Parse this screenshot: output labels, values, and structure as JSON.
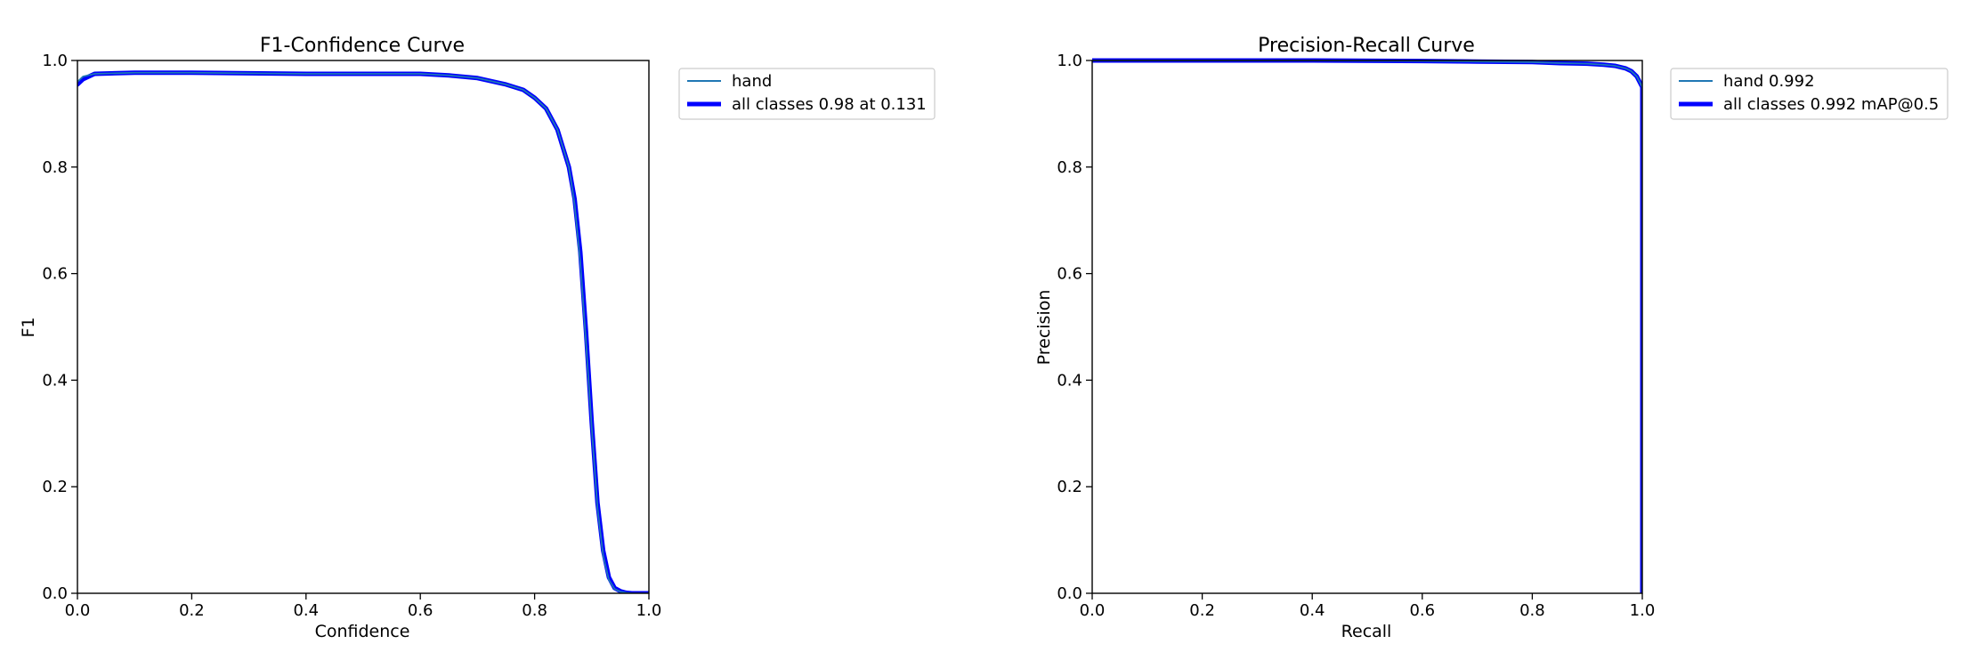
{
  "chart_data": [
    {
      "type": "line",
      "title": "F1-Confidence Curve",
      "xlabel": "Confidence",
      "ylabel": "F1",
      "xlim": [
        0.0,
        1.0
      ],
      "ylim": [
        0.0,
        1.0
      ],
      "xticks": [
        "0.0",
        "0.2",
        "0.4",
        "0.6",
        "0.8",
        "1.0"
      ],
      "yticks": [
        "0.0",
        "0.2",
        "0.4",
        "0.6",
        "0.8",
        "1.0"
      ],
      "grid": false,
      "legend_position": "upper-right-outside",
      "series": [
        {
          "name": "hand",
          "color": "#1f77b4",
          "style": "thin",
          "x": [
            0.0,
            0.01,
            0.03,
            0.1,
            0.2,
            0.3,
            0.4,
            0.5,
            0.6,
            0.65,
            0.7,
            0.75,
            0.78,
            0.8,
            0.82,
            0.84,
            0.86,
            0.87,
            0.88,
            0.89,
            0.9,
            0.91,
            0.92,
            0.93,
            0.94,
            0.95,
            0.96,
            0.97,
            1.0
          ],
          "y": [
            0.96,
            0.97,
            0.975,
            0.977,
            0.977,
            0.976,
            0.975,
            0.975,
            0.975,
            0.972,
            0.967,
            0.955,
            0.945,
            0.93,
            0.91,
            0.87,
            0.8,
            0.73,
            0.62,
            0.47,
            0.31,
            0.16,
            0.07,
            0.025,
            0.008,
            0.003,
            0.001,
            0.0,
            0.0
          ]
        },
        {
          "name": "all classes 0.98 at 0.131",
          "color": "#0000ff",
          "style": "thick",
          "x": [
            0.0,
            0.01,
            0.03,
            0.1,
            0.2,
            0.3,
            0.4,
            0.5,
            0.6,
            0.65,
            0.7,
            0.75,
            0.78,
            0.8,
            0.82,
            0.84,
            0.86,
            0.87,
            0.88,
            0.89,
            0.9,
            0.91,
            0.92,
            0.93,
            0.94,
            0.95,
            0.96,
            0.97,
            1.0
          ],
          "y": [
            0.955,
            0.965,
            0.975,
            0.977,
            0.977,
            0.976,
            0.975,
            0.975,
            0.975,
            0.972,
            0.967,
            0.955,
            0.945,
            0.93,
            0.91,
            0.87,
            0.8,
            0.74,
            0.64,
            0.49,
            0.32,
            0.17,
            0.08,
            0.03,
            0.01,
            0.004,
            0.001,
            0.0,
            0.0
          ]
        }
      ]
    },
    {
      "type": "line",
      "title": "Precision-Recall Curve",
      "xlabel": "Recall",
      "ylabel": "Precision",
      "xlim": [
        0.0,
        1.0
      ],
      "ylim": [
        0.0,
        1.0
      ],
      "xticks": [
        "0.0",
        "0.2",
        "0.4",
        "0.6",
        "0.8",
        "1.0"
      ],
      "yticks": [
        "0.0",
        "0.2",
        "0.4",
        "0.6",
        "0.8",
        "1.0"
      ],
      "grid": false,
      "legend_position": "upper-right-outside",
      "series": [
        {
          "name": "hand 0.992",
          "color": "#1f77b4",
          "style": "thin",
          "x": [
            0.0,
            0.2,
            0.4,
            0.6,
            0.7,
            0.8,
            0.85,
            0.9,
            0.93,
            0.95,
            0.97,
            0.98,
            0.99,
            0.995,
            1.0,
            1.0
          ],
          "y": [
            1.0,
            1.0,
            1.0,
            0.999,
            0.998,
            0.997,
            0.995,
            0.994,
            0.992,
            0.99,
            0.985,
            0.98,
            0.97,
            0.96,
            0.95,
            0.0
          ]
        },
        {
          "name": "all classes 0.992 mAP@0.5",
          "color": "#0000ff",
          "style": "thick",
          "x": [
            0.0,
            0.2,
            0.4,
            0.6,
            0.7,
            0.8,
            0.85,
            0.9,
            0.93,
            0.95,
            0.97,
            0.98,
            0.99,
            0.995,
            1.0,
            1.0
          ],
          "y": [
            1.0,
            1.0,
            1.0,
            0.999,
            0.998,
            0.997,
            0.995,
            0.994,
            0.992,
            0.99,
            0.985,
            0.98,
            0.97,
            0.96,
            0.95,
            0.0
          ]
        }
      ]
    }
  ]
}
